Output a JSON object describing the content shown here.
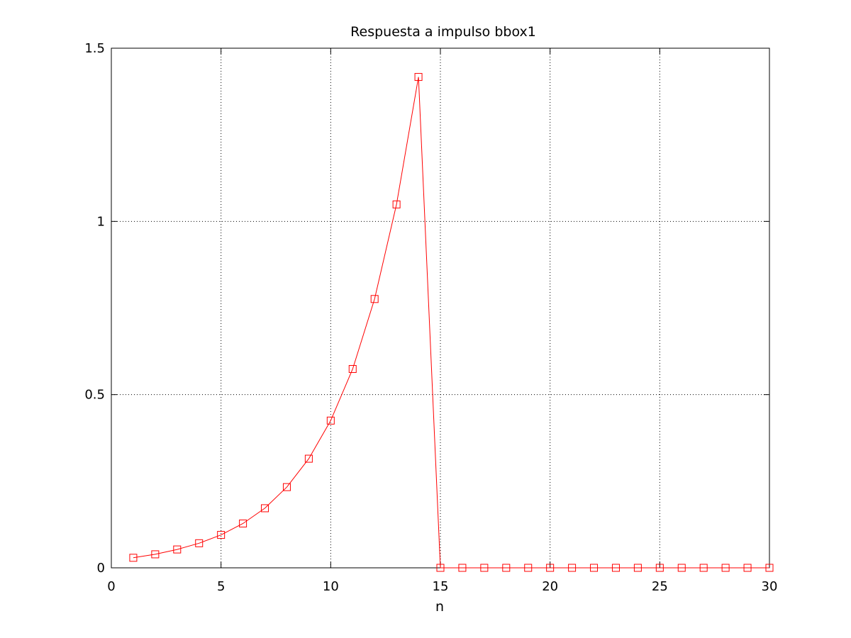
{
  "chart_data": {
    "type": "line",
    "title": "Respuesta a impulso bbox1",
    "xlabel": "n",
    "ylabel": "",
    "xlim": [
      0,
      30
    ],
    "ylim": [
      0,
      1.5
    ],
    "x_ticks": [
      0,
      5,
      10,
      15,
      20,
      25,
      30
    ],
    "y_ticks": [
      0,
      0.5,
      1,
      1.5
    ],
    "x_tick_labels": [
      "0",
      "5",
      "10",
      "15",
      "20",
      "25",
      "30"
    ],
    "y_tick_labels": [
      "0",
      "0.5",
      "1",
      "1.5"
    ],
    "grid": true,
    "grid_style": "dotted",
    "series": [
      {
        "marker": "square",
        "color": "#ff0000",
        "x": [
          1,
          2,
          3,
          4,
          5,
          6,
          7,
          8,
          9,
          10,
          11,
          12,
          13,
          14,
          15,
          16,
          17,
          18,
          19,
          20,
          21,
          22,
          23,
          24,
          25,
          26,
          27,
          28,
          29,
          30
        ],
        "values": [
          0.029,
          0.039,
          0.053,
          0.071,
          0.095,
          0.128,
          0.172,
          0.233,
          0.315,
          0.425,
          0.574,
          0.776,
          1.049,
          1.417,
          0,
          0,
          0,
          0,
          0,
          0,
          0,
          0,
          0,
          0,
          0,
          0,
          0,
          0,
          0,
          0
        ]
      }
    ]
  }
}
